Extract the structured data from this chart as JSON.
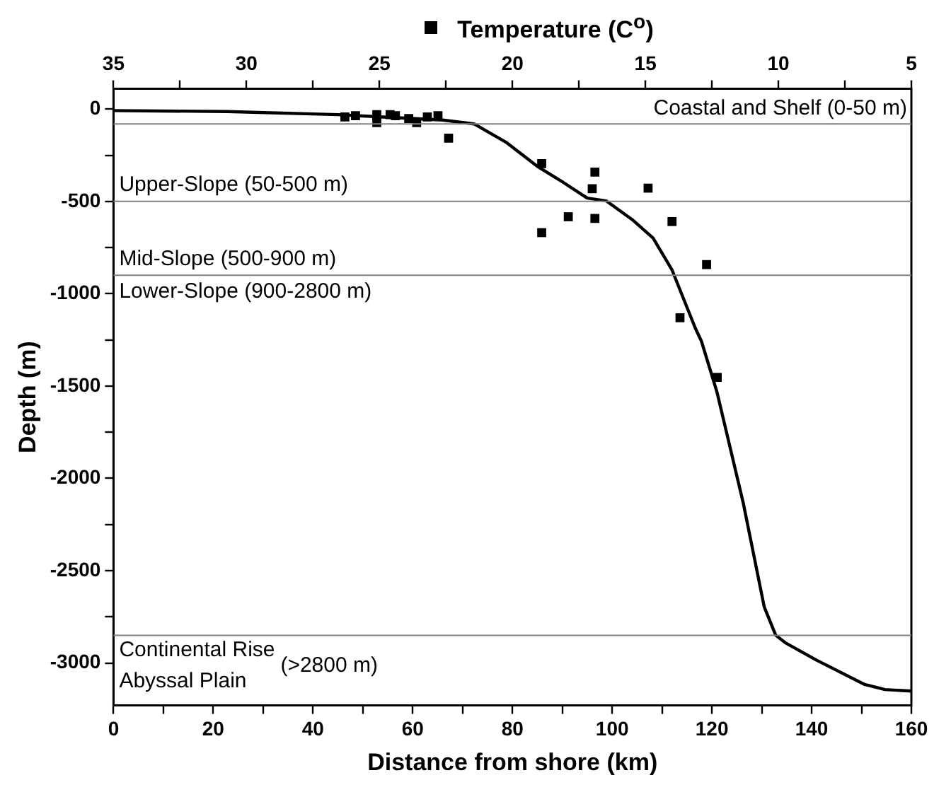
{
  "chart_data": {
    "type": "line",
    "xlabel": "Distance from shore (km)",
    "ylabel": "Depth (m)",
    "legend": "top",
    "xlim": [
      0,
      160
    ],
    "ylim": [
      -3230,
      110
    ],
    "x2lim": [
      35,
      5
    ],
    "xticks": [
      0,
      {
        "value": 10,
        "label": null
      },
      20,
      {
        "value": 30,
        "label": null
      },
      40,
      {
        "value": 50,
        "label": null
      },
      60,
      {
        "value": 70,
        "label": null
      },
      80,
      {
        "value": 90,
        "label": null
      },
      100,
      {
        "value": 110,
        "label": null
      },
      120,
      {
        "value": 130,
        "label": null
      },
      140,
      {
        "value": 150,
        "label": null
      },
      160
    ],
    "x2ticks": [
      35,
      {
        "value": 32.5,
        "label": null
      },
      30,
      {
        "value": 27.5,
        "label": null
      },
      25,
      {
        "value": 22.5,
        "label": null
      },
      20,
      {
        "value": 17.5,
        "label": null
      },
      15,
      {
        "value": 12.5,
        "label": null
      },
      10,
      {
        "value": 7.5,
        "label": null
      },
      5
    ],
    "yticks": [
      0,
      {
        "value": -250,
        "label": null
      },
      -500,
      {
        "value": -750,
        "label": null
      },
      -1000,
      {
        "value": -1250,
        "label": null
      },
      -1500,
      {
        "value": -1750,
        "label": null
      },
      -2000,
      {
        "value": -2250,
        "label": null
      },
      -2500,
      {
        "value": -2750,
        "label": null
      },
      -3000
    ],
    "grid": false,
    "series": [
      {
        "color": "#000000",
        "line_style": "solid",
        "marker": "none",
        "x": [
          0,
          22.8,
          45,
          66,
          72.3,
          78.7,
          85,
          90.2,
          95,
          98.8,
          104,
          108.2,
          112,
          116.7,
          117.9,
          121,
          126.3,
          130.5,
          132.8,
          134.7,
          141,
          150.5,
          154.7,
          160
        ],
        "values": [
          -8,
          -13,
          -30,
          -59,
          -80,
          -179,
          -310,
          -397,
          -482,
          -497,
          -598,
          -698,
          -871,
          -1188,
          -1257,
          -1531,
          -2135,
          -2697,
          -2850,
          -2890,
          -2985,
          -3115,
          -3144,
          -3152
        ]
      },
      {
        "type": "scatter",
        "name": "Temperature (C$^{o}$)",
        "axis": "x2",
        "color": "#000000",
        "marker": "square",
        "x": [
          26.3,
          25.9,
          25.1,
          25.1,
          24.6,
          24.4,
          23.9,
          23.6,
          23.2,
          22.8,
          22.4,
          18.9,
          16.9,
          17.0,
          14.9,
          17.9,
          16.9,
          18.9,
          14.0,
          12.7,
          13.7,
          12.3
        ],
        "values": [
          -42,
          -36,
          -30,
          -73,
          -30,
          -36,
          -51,
          -73,
          -42,
          -36,
          -157,
          -295,
          -341,
          -431,
          -428,
          -583,
          -592,
          -669,
          -609,
          -842,
          -1130,
          -1453
        ]
      }
    ],
    "ref_lines": [
      {
        "axis": "y",
        "value": -80,
        "label": "Coastal and Shelf (0-50 m)",
        "color": "#808080"
      },
      {
        "axis": "y",
        "value": -500,
        "label": "Upper-Slope (50-500 m)",
        "color": "#808080"
      },
      {
        "axis": "y",
        "value": -900,
        "label": "Mid-Slope (500-900 m)",
        "color": "#808080"
      },
      {
        "axis": "y",
        "value": -2850,
        "label": "Continental Rise\nAbyssal Plain",
        "color": "#808080"
      }
    ],
    "annotations": [
      "Lower-Slope (900-2800 m)",
      "(>2800 m)"
    ]
  }
}
